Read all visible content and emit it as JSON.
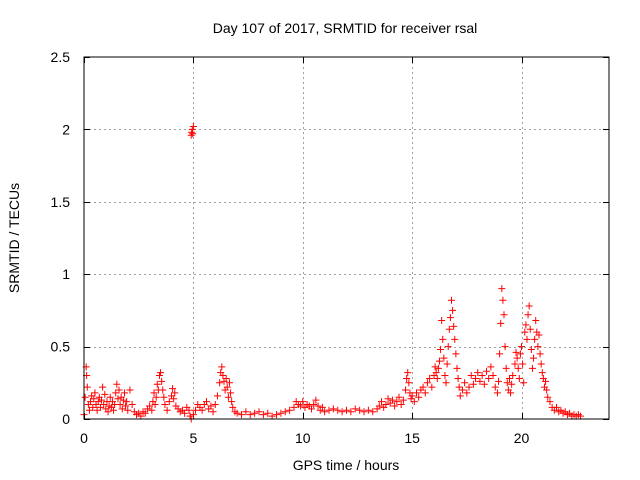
{
  "chart_data": {
    "type": "scatter",
    "title": "Day 107 of 2017, SRMTID for receiver rsal",
    "xlabel": "GPS time / hours",
    "ylabel": "SRMTID / TECUs",
    "xlim": [
      0,
      24
    ],
    "ylim": [
      0,
      2.5
    ],
    "xticks": [
      0,
      5,
      10,
      15,
      20
    ],
    "xtick_labels": [
      "0",
      "5",
      "10",
      "15",
      "20"
    ],
    "yticks": [
      0,
      0.5,
      1,
      1.5,
      2,
      2.5
    ],
    "ytick_labels": [
      "0",
      "0.5",
      "1",
      "1.5",
      "2",
      "2.5"
    ],
    "grid": true,
    "marker": "+",
    "color": "#ff0000",
    "series": [
      {
        "name": "SRMTID",
        "points": [
          [
            0.0,
            0.03
          ],
          [
            0.05,
            0.15
          ],
          [
            0.1,
            0.36
          ],
          [
            0.12,
            0.3
          ],
          [
            0.15,
            0.22
          ],
          [
            0.2,
            0.1
          ],
          [
            0.25,
            0.06
          ],
          [
            0.3,
            0.12
          ],
          [
            0.35,
            0.16
          ],
          [
            0.4,
            0.08
          ],
          [
            0.45,
            0.14
          ],
          [
            0.5,
            0.18
          ],
          [
            0.55,
            0.1
          ],
          [
            0.6,
            0.06
          ],
          [
            0.65,
            0.12
          ],
          [
            0.7,
            0.15
          ],
          [
            0.75,
            0.08
          ],
          [
            0.8,
            0.13
          ],
          [
            0.85,
            0.22
          ],
          [
            0.9,
            0.1
          ],
          [
            0.95,
            0.17
          ],
          [
            1.0,
            0.07
          ],
          [
            1.05,
            0.12
          ],
          [
            1.1,
            0.05
          ],
          [
            1.15,
            0.09
          ],
          [
            1.2,
            0.15
          ],
          [
            1.25,
            0.08
          ],
          [
            1.3,
            0.12
          ],
          [
            1.35,
            0.06
          ],
          [
            1.4,
            0.1
          ],
          [
            1.45,
            0.18
          ],
          [
            1.5,
            0.24
          ],
          [
            1.55,
            0.14
          ],
          [
            1.6,
            0.2
          ],
          [
            1.65,
            0.1
          ],
          [
            1.7,
            0.15
          ],
          [
            1.75,
            0.07
          ],
          [
            1.8,
            0.13
          ],
          [
            1.85,
            0.18
          ],
          [
            1.9,
            0.09
          ],
          [
            1.95,
            0.12
          ],
          [
            2.0,
            0.06
          ],
          [
            2.1,
            0.2
          ],
          [
            2.2,
            0.1
          ],
          [
            2.3,
            0.05
          ],
          [
            2.4,
            0.03
          ],
          [
            2.5,
            0.04
          ],
          [
            2.6,
            0.02
          ],
          [
            2.7,
            0.05
          ],
          [
            2.8,
            0.04
          ],
          [
            2.9,
            0.07
          ],
          [
            3.0,
            0.09
          ],
          [
            3.1,
            0.06
          ],
          [
            3.15,
            0.12
          ],
          [
            3.2,
            0.18
          ],
          [
            3.25,
            0.1
          ],
          [
            3.3,
            0.15
          ],
          [
            3.35,
            0.24
          ],
          [
            3.4,
            0.2
          ],
          [
            3.45,
            0.3
          ],
          [
            3.5,
            0.32
          ],
          [
            3.55,
            0.26
          ],
          [
            3.6,
            0.2
          ],
          [
            3.65,
            0.15
          ],
          [
            3.7,
            0.1
          ],
          [
            3.8,
            0.06
          ],
          [
            3.9,
            0.12
          ],
          [
            4.0,
            0.16
          ],
          [
            4.05,
            0.21
          ],
          [
            4.1,
            0.14
          ],
          [
            4.15,
            0.18
          ],
          [
            4.2,
            0.09
          ],
          [
            4.3,
            0.07
          ],
          [
            4.4,
            0.05
          ],
          [
            4.5,
            0.06
          ],
          [
            4.6,
            0.04
          ],
          [
            4.7,
            0.08
          ],
          [
            4.8,
            0.06
          ],
          [
            4.85,
            0.02
          ],
          [
            4.9,
            0.0
          ],
          [
            4.9,
            1.96
          ],
          [
            4.92,
            1.98
          ],
          [
            4.95,
            2.0
          ],
          [
            4.97,
            1.97
          ],
          [
            5.0,
            2.02
          ],
          [
            5.0,
            0.03
          ],
          [
            5.1,
            0.06
          ],
          [
            5.2,
            0.1
          ],
          [
            5.3,
            0.08
          ],
          [
            5.4,
            0.06
          ],
          [
            5.5,
            0.1
          ],
          [
            5.6,
            0.12
          ],
          [
            5.7,
            0.07
          ],
          [
            5.8,
            0.09
          ],
          [
            5.9,
            0.05
          ],
          [
            6.0,
            0.1
          ],
          [
            6.1,
            0.16
          ],
          [
            6.2,
            0.25
          ],
          [
            6.25,
            0.32
          ],
          [
            6.3,
            0.36
          ],
          [
            6.35,
            0.3
          ],
          [
            6.4,
            0.26
          ],
          [
            6.45,
            0.2
          ],
          [
            6.5,
            0.28
          ],
          [
            6.55,
            0.22
          ],
          [
            6.6,
            0.15
          ],
          [
            6.65,
            0.25
          ],
          [
            6.7,
            0.18
          ],
          [
            6.75,
            0.12
          ],
          [
            6.8,
            0.08
          ],
          [
            6.9,
            0.05
          ],
          [
            7.0,
            0.04
          ],
          [
            7.2,
            0.03
          ],
          [
            7.4,
            0.05
          ],
          [
            7.6,
            0.03
          ],
          [
            7.8,
            0.04
          ],
          [
            8.0,
            0.05
          ],
          [
            8.2,
            0.03
          ],
          [
            8.4,
            0.04
          ],
          [
            8.6,
            0.02
          ],
          [
            8.8,
            0.03
          ],
          [
            9.0,
            0.04
          ],
          [
            9.2,
            0.05
          ],
          [
            9.4,
            0.06
          ],
          [
            9.6,
            0.08
          ],
          [
            9.7,
            0.12
          ],
          [
            9.8,
            0.1
          ],
          [
            9.9,
            0.09
          ],
          [
            10.0,
            0.12
          ],
          [
            10.1,
            0.08
          ],
          [
            10.2,
            0.1
          ],
          [
            10.3,
            0.09
          ],
          [
            10.4,
            0.07
          ],
          [
            10.5,
            0.1
          ],
          [
            10.6,
            0.13
          ],
          [
            10.7,
            0.09
          ],
          [
            10.8,
            0.06
          ],
          [
            10.9,
            0.08
          ],
          [
            11.0,
            0.05
          ],
          [
            11.2,
            0.06
          ],
          [
            11.4,
            0.07
          ],
          [
            11.6,
            0.06
          ],
          [
            11.8,
            0.05
          ],
          [
            12.0,
            0.06
          ],
          [
            12.2,
            0.05
          ],
          [
            12.4,
            0.07
          ],
          [
            12.6,
            0.06
          ],
          [
            12.8,
            0.05
          ],
          [
            13.0,
            0.06
          ],
          [
            13.2,
            0.05
          ],
          [
            13.4,
            0.07
          ],
          [
            13.5,
            0.09
          ],
          [
            13.6,
            0.12
          ],
          [
            13.7,
            0.08
          ],
          [
            13.8,
            0.1
          ],
          [
            13.9,
            0.14
          ],
          [
            14.0,
            0.11
          ],
          [
            14.1,
            0.13
          ],
          [
            14.2,
            0.09
          ],
          [
            14.3,
            0.12
          ],
          [
            14.4,
            0.15
          ],
          [
            14.5,
            0.1
          ],
          [
            14.6,
            0.13
          ],
          [
            14.7,
            0.2
          ],
          [
            14.75,
            0.28
          ],
          [
            14.8,
            0.32
          ],
          [
            14.85,
            0.25
          ],
          [
            14.9,
            0.18
          ],
          [
            14.95,
            0.14
          ],
          [
            15.0,
            0.16
          ],
          [
            15.1,
            0.12
          ],
          [
            15.2,
            0.18
          ],
          [
            15.3,
            0.15
          ],
          [
            15.4,
            0.2
          ],
          [
            15.5,
            0.22
          ],
          [
            15.6,
            0.18
          ],
          [
            15.7,
            0.25
          ],
          [
            15.8,
            0.28
          ],
          [
            15.9,
            0.22
          ],
          [
            16.0,
            0.3
          ],
          [
            16.05,
            0.36
          ],
          [
            16.1,
            0.32
          ],
          [
            16.15,
            0.28
          ],
          [
            16.2,
            0.35
          ],
          [
            16.25,
            0.4
          ],
          [
            16.3,
            0.48
          ],
          [
            16.35,
            0.68
          ],
          [
            16.4,
            0.55
          ],
          [
            16.45,
            0.42
          ],
          [
            16.5,
            0.3
          ],
          [
            16.55,
            0.25
          ],
          [
            16.6,
            0.38
          ],
          [
            16.65,
            0.5
          ],
          [
            16.7,
            0.62
          ],
          [
            16.75,
            0.7
          ],
          [
            16.8,
            0.82
          ],
          [
            16.85,
            0.75
          ],
          [
            16.9,
            0.64
          ],
          [
            16.95,
            0.55
          ],
          [
            17.0,
            0.45
          ],
          [
            17.05,
            0.35
          ],
          [
            17.1,
            0.28
          ],
          [
            17.15,
            0.22
          ],
          [
            17.2,
            0.16
          ],
          [
            17.3,
            0.2
          ],
          [
            17.4,
            0.25
          ],
          [
            17.5,
            0.18
          ],
          [
            17.6,
            0.22
          ],
          [
            17.7,
            0.3
          ],
          [
            17.8,
            0.24
          ],
          [
            17.9,
            0.28
          ],
          [
            18.0,
            0.32
          ],
          [
            18.1,
            0.26
          ],
          [
            18.2,
            0.3
          ],
          [
            18.3,
            0.24
          ],
          [
            18.4,
            0.33
          ],
          [
            18.5,
            0.28
          ],
          [
            18.6,
            0.36
          ],
          [
            18.7,
            0.3
          ],
          [
            18.8,
            0.22
          ],
          [
            18.9,
            0.18
          ],
          [
            18.95,
            0.26
          ],
          [
            19.0,
            0.45
          ],
          [
            19.05,
            0.66
          ],
          [
            19.1,
            0.9
          ],
          [
            19.15,
            0.82
          ],
          [
            19.2,
            0.72
          ],
          [
            19.25,
            0.5
          ],
          [
            19.3,
            0.35
          ],
          [
            19.35,
            0.25
          ],
          [
            19.4,
            0.2
          ],
          [
            19.45,
            0.28
          ],
          [
            19.5,
            0.18
          ],
          [
            19.55,
            0.24
          ],
          [
            19.6,
            0.3
          ],
          [
            19.7,
            0.38
          ],
          [
            19.75,
            0.46
          ],
          [
            19.8,
            0.42
          ],
          [
            19.85,
            0.35
          ],
          [
            19.9,
            0.28
          ],
          [
            19.95,
            0.45
          ],
          [
            20.0,
            0.5
          ],
          [
            20.05,
            0.38
          ],
          [
            20.1,
            0.25
          ],
          [
            20.15,
            0.6
          ],
          [
            20.2,
            0.65
          ],
          [
            20.25,
            0.55
          ],
          [
            20.3,
            0.72
          ],
          [
            20.35,
            0.78
          ],
          [
            20.4,
            0.62
          ],
          [
            20.45,
            0.48
          ],
          [
            20.5,
            0.35
          ],
          [
            20.55,
            0.42
          ],
          [
            20.6,
            0.55
          ],
          [
            20.65,
            0.68
          ],
          [
            20.7,
            0.6
          ],
          [
            20.75,
            0.5
          ],
          [
            20.8,
            0.58
          ],
          [
            20.85,
            0.45
          ],
          [
            20.9,
            0.38
          ],
          [
            20.95,
            0.32
          ],
          [
            21.0,
            0.28
          ],
          [
            21.05,
            0.22
          ],
          [
            21.1,
            0.26
          ],
          [
            21.15,
            0.2
          ],
          [
            21.2,
            0.15
          ],
          [
            21.3,
            0.12
          ],
          [
            21.4,
            0.08
          ],
          [
            21.5,
            0.06
          ],
          [
            21.6,
            0.08
          ],
          [
            21.7,
            0.05
          ],
          [
            21.8,
            0.06
          ],
          [
            21.9,
            0.04
          ],
          [
            22.0,
            0.05
          ],
          [
            22.1,
            0.03
          ],
          [
            22.2,
            0.04
          ],
          [
            22.3,
            0.02
          ],
          [
            22.4,
            0.03
          ],
          [
            22.5,
            0.02
          ],
          [
            22.6,
            0.03
          ],
          [
            22.7,
            0.02
          ]
        ]
      }
    ]
  }
}
